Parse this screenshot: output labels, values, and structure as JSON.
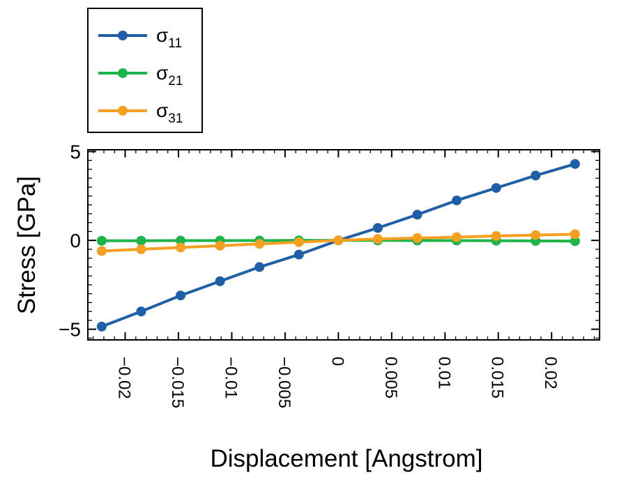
{
  "chart_data": {
    "type": "line",
    "title": "",
    "xlabel": "Displacement [Angstrom]",
    "ylabel": "Stress [GPa]",
    "xlim": [
      -0.0235,
      0.0245
    ],
    "ylim": [
      -5.6,
      5.1
    ],
    "xticks": [
      -0.02,
      -0.015,
      -0.01,
      -0.005,
      0,
      0.005,
      0.01,
      0.015,
      0.02
    ],
    "xtick_labels": [
      "−0.02",
      "−0.015",
      "−0.01",
      "−0.005",
      "0",
      "0.005",
      "0.01",
      "0.015",
      "0.02"
    ],
    "yticks": [
      -5,
      0,
      5
    ],
    "ytick_labels": [
      "−5",
      "0",
      "5"
    ],
    "grid": false,
    "legend_position": "top-left outside",
    "x": [
      -0.0222,
      -0.0185,
      -0.0148,
      -0.0111,
      -0.0074,
      -0.0037,
      0,
      0.0037,
      0.0074,
      0.0111,
      0.0148,
      0.0185,
      0.0222
    ],
    "series": [
      {
        "name": "σ",
        "subscript": "11",
        "color": "#1f5fa8",
        "values": [
          -4.85,
          -4.0,
          -3.1,
          -2.3,
          -1.5,
          -0.8,
          0,
          0.7,
          1.45,
          2.25,
          2.95,
          3.65,
          4.3
        ]
      },
      {
        "name": "σ",
        "subscript": "21",
        "color": "#1fb44a",
        "values": [
          -0.02,
          -0.02,
          -0.01,
          -0.01,
          -0.01,
          0,
          0,
          0,
          -0.01,
          -0.01,
          -0.02,
          -0.03,
          -0.04
        ]
      },
      {
        "name": "σ",
        "subscript": "31",
        "color": "#f5a020",
        "values": [
          -0.6,
          -0.5,
          -0.4,
          -0.3,
          -0.2,
          -0.1,
          0,
          0.08,
          0.13,
          0.18,
          0.25,
          0.3,
          0.35
        ]
      }
    ]
  }
}
